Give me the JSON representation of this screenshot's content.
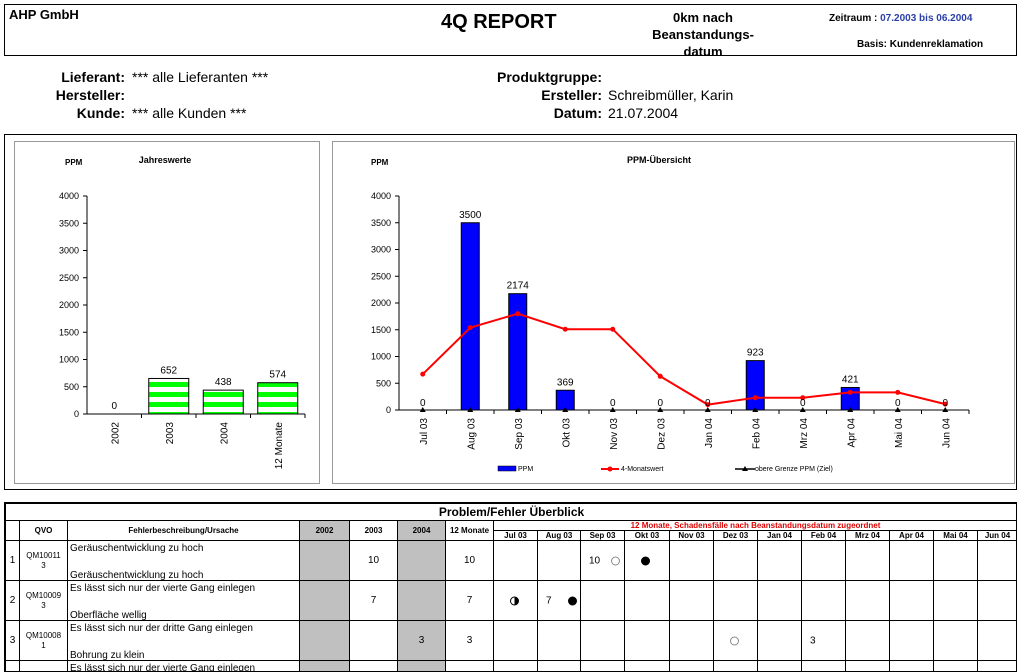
{
  "header": {
    "company": "AHP GmbH",
    "title": "4Q REPORT",
    "subtitle_lines": [
      "0km nach",
      "Beanstandungs-",
      "datum"
    ],
    "zeitraum_label": "Zeitraum :",
    "zeitraum_value": "07.2003 bis 06.2004",
    "basis": "Basis: Kundenreklamation"
  },
  "info": {
    "lieferant_label": "Lieferant:",
    "lieferant_value": "*** alle Lieferanten ***",
    "hersteller_label": "Hersteller:",
    "hersteller_value": "",
    "kunde_label": "Kunde:",
    "kunde_value": "*** alle Kunden ***",
    "produktgruppe_label": "Produktgruppe:",
    "produktgruppe_value": "",
    "ersteller_label": "Ersteller:",
    "ersteller_value": "Schreibmüller, Karin",
    "datum_label": "Datum:",
    "datum_value": "21.07.2004"
  },
  "chart_data": [
    {
      "type": "bar",
      "title": "Jahreswerte",
      "ylabel": "PPM",
      "xlabel": "",
      "ylim": [
        0,
        4000
      ],
      "yticks": [
        0,
        500,
        1000,
        1500,
        2000,
        2500,
        3000,
        3500,
        4000
      ],
      "categories": [
        "2002",
        "2003",
        "2004",
        "12 Monate"
      ],
      "values": [
        0,
        652,
        438,
        574
      ],
      "data_labels": [
        "0",
        "652",
        "438",
        "574"
      ],
      "bar_fill": "striped green/white",
      "colors": {
        "bar": "#00ff00",
        "stripe": "#ffffff",
        "border": "#000000"
      }
    },
    {
      "type": "bar",
      "title": "PPM-Übersicht",
      "ylabel": "PPM",
      "xlabel": "",
      "ylim": [
        0,
        4000
      ],
      "yticks": [
        0,
        500,
        1000,
        1500,
        2000,
        2500,
        3000,
        3500,
        4000
      ],
      "categories": [
        "Jul 03",
        "Aug 03",
        "Sep 03",
        "Okt 03",
        "Nov 03",
        "Dez 03",
        "Jan 04",
        "Feb 04",
        "Mrz 04",
        "Apr 04",
        "Mai 04",
        "Jun 04"
      ],
      "series": [
        {
          "name": "PPM",
          "kind": "bar",
          "color": "#0000ff",
          "values": [
            0,
            3500,
            2174,
            369,
            0,
            0,
            0,
            923,
            0,
            421,
            0,
            0
          ]
        },
        {
          "name": "4-Monatswert",
          "kind": "line",
          "color": "#ff0000",
          "values": [
            670,
            1540,
            1800,
            1510,
            1510,
            630,
            100,
            230,
            230,
            330,
            330,
            110
          ]
        },
        {
          "name": "obere Grenze PPM (Ziel)",
          "kind": "line",
          "color": "#000000",
          "values": [
            0,
            0,
            0,
            0,
            0,
            0,
            0,
            0,
            0,
            0,
            0,
            0
          ]
        }
      ],
      "legend_position": "bottom"
    }
  ],
  "table": {
    "title": "Problem/Fehler Überblick",
    "col_qvo": "QVO",
    "col_desc": "Fehlerbeschreibung/Ursache",
    "col_years": [
      "2002",
      "2003",
      "2004",
      "12 Monate"
    ],
    "note": "12 Monate, Schadensfälle nach Beanstandungsdatum zugeordnet",
    "months": [
      "Jul 03",
      "Aug 03",
      "Sep 03",
      "Okt 03",
      "Nov 03",
      "Dez 03",
      "Jan 04",
      "Feb 04",
      "Mrz 04",
      "Apr 04",
      "Mai 04",
      "Jun 04"
    ],
    "rows": [
      {
        "no": "1",
        "qvo": [
          "QM10011",
          "3"
        ],
        "desc1": "Geräuschentwicklung zu hoch",
        "desc2": "Geräuschentwicklung zu hoch",
        "y2002": "",
        "y2003": "10",
        "y2004": "",
        "m12": "10",
        "months": {
          "Sep 03": {
            "text": "10",
            "marker": "empty"
          },
          "Okt 03": {
            "text": "",
            "marker": "full"
          }
        }
      },
      {
        "no": "2",
        "qvo": [
          "QM10009",
          "3"
        ],
        "desc1": "Es lässt sich nur der vierte Gang einlegen",
        "desc2": "Oberfläche wellig",
        "y2002": "",
        "y2003": "7",
        "y2004": "",
        "m12": "7",
        "months": {
          "Jul 03": {
            "text": "",
            "marker": "half"
          },
          "Aug 03": {
            "text": "7",
            "marker": "full"
          }
        }
      },
      {
        "no": "3",
        "qvo": [
          "QM10008",
          "1"
        ],
        "desc1": "Es lässt sich nur der dritte Gang einlegen",
        "desc2": "Bohrung zu klein",
        "y2002": "",
        "y2003": "",
        "y2004": "3",
        "m12": "3",
        "months": {
          "Dez 03": {
            "text": "",
            "marker": "empty"
          },
          "Feb 04": {
            "text": "3",
            "marker": ""
          }
        }
      },
      {
        "no": "",
        "qvo": [
          "",
          ""
        ],
        "desc1": "Es lässt sich nur der vierte Gang einlegen",
        "desc2": "",
        "y2002": "",
        "y2003": "",
        "y2004": "",
        "m12": "",
        "months": {}
      }
    ]
  }
}
